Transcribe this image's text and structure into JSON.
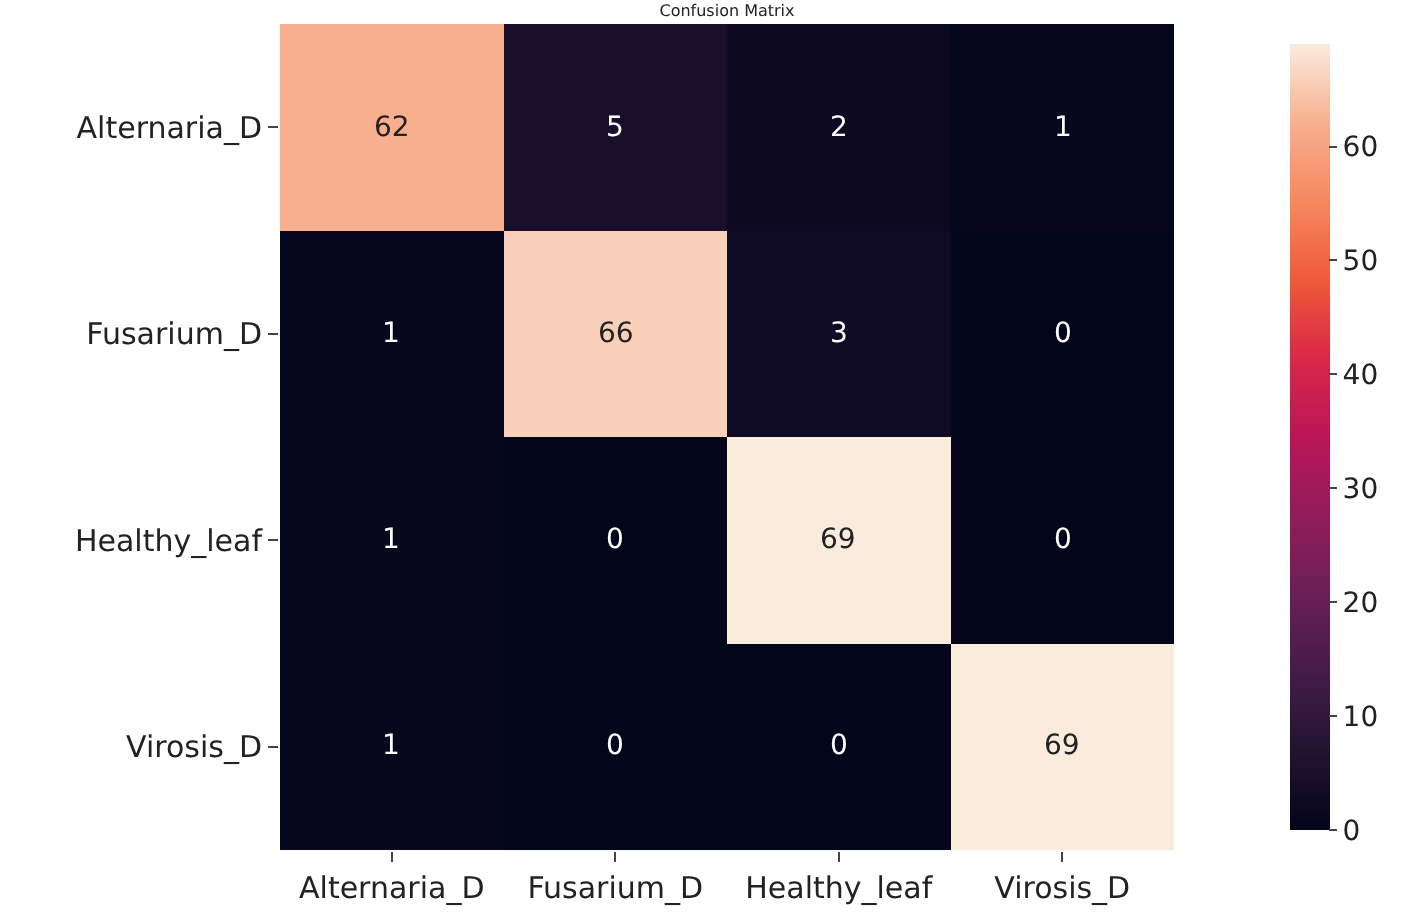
{
  "chart_data": {
    "type": "heatmap",
    "title": "Confusion Matrix",
    "categories": [
      "Alternaria_D",
      "Fusarium_D",
      "Healthy_leaf",
      "Virosis_D"
    ],
    "y_categories": [
      "Alternaria_D",
      "Fusarium_D",
      "Healthy_leaf",
      "Virosis_D"
    ],
    "cells": [
      [
        62,
        5,
        2,
        1
      ],
      [
        1,
        66,
        3,
        0
      ],
      [
        1,
        0,
        69,
        0
      ],
      [
        1,
        0,
        0,
        69
      ]
    ],
    "clim": [
      0,
      69
    ],
    "cticks": [
      0,
      10,
      20,
      30,
      40,
      50,
      60
    ],
    "data_labels": true
  }
}
